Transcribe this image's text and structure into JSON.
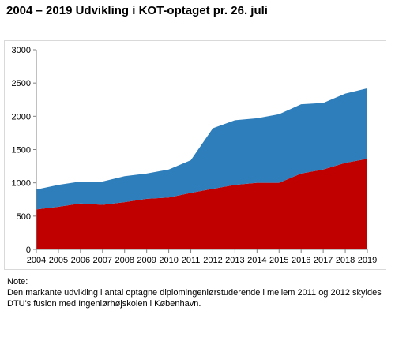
{
  "page": {
    "title": "2004 – 2019 Udvikling i KOT-optaget pr. 26. juli",
    "note_heading": "Note:",
    "note_text": "Den markante udvikling i antal optagne diplomingeniørstuderende i mellem 2011 og 2012 skyldes DTU's fusion med Ingeniørhøjskolen i København."
  },
  "colors": {
    "lower": "#c00000",
    "upper": "#2e7ebb",
    "axis": "#808080"
  },
  "chart_data": {
    "type": "area",
    "stacked": true,
    "title": "2004 – 2019 Udvikling i KOT-optaget pr. 26. juli",
    "xlabel": "",
    "ylabel": "",
    "x": [
      "2004",
      "2005",
      "2006",
      "2007",
      "2008",
      "2009",
      "2010",
      "2011",
      "2012",
      "2013",
      "2014",
      "2015",
      "2016",
      "2017",
      "2018",
      "2019"
    ],
    "series": [
      {
        "values": [
          600,
          640,
          690,
          670,
          710,
          760,
          780,
          850,
          910,
          970,
          1000,
          1000,
          1140,
          1200,
          1300,
          1360
        ],
        "color": "#c00000"
      },
      {
        "values": [
          300,
          330,
          330,
          350,
          390,
          380,
          420,
          490,
          910,
          970,
          970,
          1030,
          1040,
          1000,
          1040,
          1060
        ],
        "color": "#2e7ebb"
      }
    ],
    "ylim": [
      0,
      3000
    ],
    "yticks": [
      0,
      500,
      1000,
      1500,
      2000,
      2500,
      3000
    ],
    "grid": false,
    "legend": "none"
  }
}
